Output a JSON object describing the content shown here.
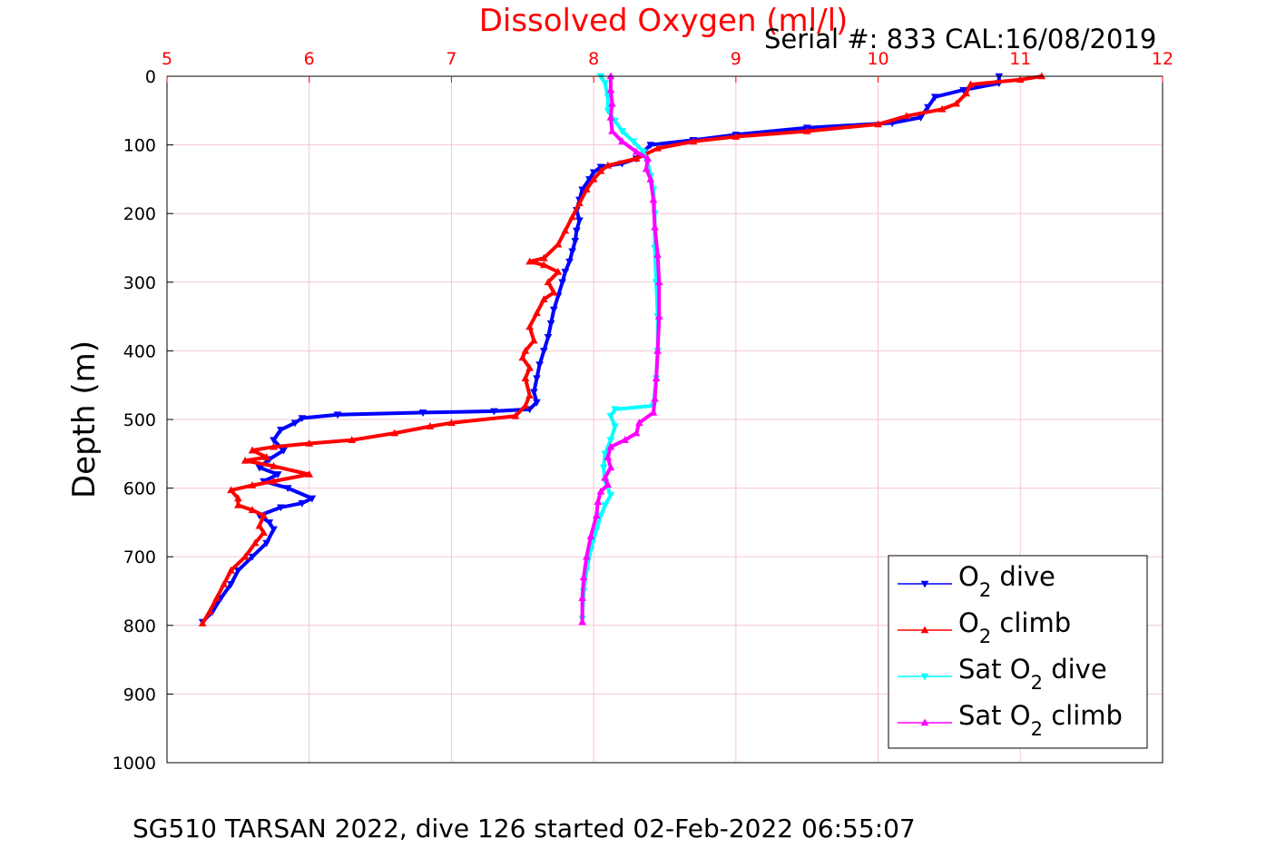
{
  "chart_data": {
    "type": "line",
    "title": "Dissolved Oxygen (ml/l)",
    "ylabel": "Depth (m)",
    "xlim": [
      5,
      12
    ],
    "ylim": [
      0,
      1000
    ],
    "y_reversed": true,
    "x_axis_position": "top",
    "x_ticks": [
      "5",
      "6",
      "7",
      "8",
      "9",
      "10",
      "11",
      "12"
    ],
    "y_ticks": [
      "0",
      "100",
      "200",
      "300",
      "400",
      "500",
      "600",
      "700",
      "800",
      "900",
      "1000"
    ],
    "grid": true,
    "legend_position": "bottom-right",
    "colors": {
      "title": "#ff0000",
      "x_ticks": "#ff0000",
      "grid": "#f4c7d4"
    },
    "series": [
      {
        "name": "O2 dive",
        "legend_main": "O",
        "legend_sub": "2",
        "legend_rest": " dive",
        "color": "#0000ff",
        "marker": "triangle-down",
        "points": [
          [
            10.85,
            0
          ],
          [
            10.85,
            10
          ],
          [
            10.6,
            20
          ],
          [
            10.4,
            30
          ],
          [
            10.35,
            45
          ],
          [
            10.3,
            60
          ],
          [
            10.1,
            68
          ],
          [
            9.5,
            75
          ],
          [
            9.0,
            85
          ],
          [
            8.7,
            93
          ],
          [
            8.4,
            100
          ],
          [
            8.35,
            110
          ],
          [
            8.3,
            120
          ],
          [
            8.2,
            127
          ],
          [
            8.05,
            132
          ],
          [
            8.0,
            140
          ],
          [
            7.97,
            150
          ],
          [
            7.92,
            165
          ],
          [
            7.9,
            180
          ],
          [
            7.88,
            195
          ],
          [
            7.9,
            210
          ],
          [
            7.88,
            225
          ],
          [
            7.87,
            240
          ],
          [
            7.85,
            255
          ],
          [
            7.83,
            270
          ],
          [
            7.8,
            285
          ],
          [
            7.78,
            300
          ],
          [
            7.75,
            320
          ],
          [
            7.72,
            340
          ],
          [
            7.7,
            360
          ],
          [
            7.68,
            380
          ],
          [
            7.65,
            400
          ],
          [
            7.62,
            420
          ],
          [
            7.6,
            440
          ],
          [
            7.58,
            460
          ],
          [
            7.6,
            475
          ],
          [
            7.55,
            485
          ],
          [
            7.3,
            488
          ],
          [
            6.8,
            490
          ],
          [
            6.2,
            493
          ],
          [
            5.95,
            498
          ],
          [
            5.9,
            505
          ],
          [
            5.8,
            515
          ],
          [
            5.75,
            530
          ],
          [
            5.82,
            545
          ],
          [
            5.72,
            558
          ],
          [
            5.65,
            570
          ],
          [
            5.78,
            580
          ],
          [
            5.68,
            590
          ],
          [
            5.85,
            600
          ],
          [
            6.02,
            615
          ],
          [
            5.95,
            622
          ],
          [
            5.8,
            628
          ],
          [
            5.65,
            640
          ],
          [
            5.72,
            650
          ],
          [
            5.75,
            660
          ],
          [
            5.7,
            680
          ],
          [
            5.6,
            700
          ],
          [
            5.5,
            720
          ],
          [
            5.45,
            740
          ],
          [
            5.38,
            760
          ],
          [
            5.32,
            780
          ],
          [
            5.25,
            795
          ]
        ]
      },
      {
        "name": "O2 climb",
        "legend_main": "O",
        "legend_sub": "2",
        "legend_rest": " climb",
        "color": "#ff0000",
        "marker": "triangle-up",
        "points": [
          [
            11.15,
            0
          ],
          [
            11.0,
            5
          ],
          [
            10.65,
            12
          ],
          [
            10.62,
            25
          ],
          [
            10.55,
            40
          ],
          [
            10.45,
            48
          ],
          [
            10.2,
            58
          ],
          [
            10.0,
            70
          ],
          [
            9.5,
            80
          ],
          [
            9.0,
            88
          ],
          [
            8.7,
            95
          ],
          [
            8.45,
            105
          ],
          [
            8.3,
            120
          ],
          [
            8.1,
            130
          ],
          [
            8.05,
            138
          ],
          [
            8.0,
            150
          ],
          [
            7.95,
            165
          ],
          [
            7.9,
            185
          ],
          [
            7.85,
            205
          ],
          [
            7.8,
            225
          ],
          [
            7.75,
            245
          ],
          [
            7.65,
            265
          ],
          [
            7.55,
            270
          ],
          [
            7.65,
            275
          ],
          [
            7.75,
            285
          ],
          [
            7.68,
            300
          ],
          [
            7.72,
            315
          ],
          [
            7.65,
            325
          ],
          [
            7.6,
            345
          ],
          [
            7.55,
            365
          ],
          [
            7.58,
            385
          ],
          [
            7.52,
            400
          ],
          [
            7.5,
            410
          ],
          [
            7.55,
            425
          ],
          [
            7.52,
            440
          ],
          [
            7.55,
            465
          ],
          [
            7.52,
            480
          ],
          [
            7.45,
            495
          ],
          [
            7.0,
            505
          ],
          [
            6.85,
            510
          ],
          [
            6.6,
            520
          ],
          [
            6.3,
            530
          ],
          [
            6.0,
            535
          ],
          [
            5.75,
            540
          ],
          [
            5.6,
            545
          ],
          [
            5.7,
            555
          ],
          [
            5.55,
            560
          ],
          [
            5.75,
            568
          ],
          [
            6.0,
            580
          ],
          [
            5.75,
            590
          ],
          [
            5.6,
            596
          ],
          [
            5.45,
            603
          ],
          [
            5.5,
            615
          ],
          [
            5.5,
            625
          ],
          [
            5.6,
            632
          ],
          [
            5.68,
            640
          ],
          [
            5.65,
            655
          ],
          [
            5.68,
            665
          ],
          [
            5.62,
            680
          ],
          [
            5.55,
            700
          ],
          [
            5.45,
            720
          ],
          [
            5.4,
            740
          ],
          [
            5.35,
            760
          ],
          [
            5.3,
            780
          ],
          [
            5.25,
            797
          ]
        ]
      },
      {
        "name": "Sat O2 dive",
        "legend_main": "Sat O",
        "legend_sub": "2",
        "legend_rest": " dive",
        "color": "#00ffff",
        "marker": "triangle-down",
        "points": [
          [
            8.05,
            0
          ],
          [
            8.08,
            10
          ],
          [
            8.1,
            30
          ],
          [
            8.1,
            50
          ],
          [
            8.15,
            65
          ],
          [
            8.2,
            80
          ],
          [
            8.28,
            95
          ],
          [
            8.35,
            110
          ],
          [
            8.38,
            125
          ],
          [
            8.4,
            145
          ],
          [
            8.42,
            165
          ],
          [
            8.43,
            200
          ],
          [
            8.43,
            250
          ],
          [
            8.44,
            300
          ],
          [
            8.45,
            350
          ],
          [
            8.45,
            400
          ],
          [
            8.44,
            440
          ],
          [
            8.42,
            480
          ],
          [
            8.15,
            485
          ],
          [
            8.12,
            495
          ],
          [
            8.15,
            510
          ],
          [
            8.12,
            530
          ],
          [
            8.08,
            550
          ],
          [
            8.07,
            570
          ],
          [
            8.08,
            590
          ],
          [
            8.12,
            610
          ],
          [
            8.08,
            625
          ],
          [
            8.05,
            640
          ],
          [
            8.02,
            660
          ],
          [
            7.98,
            690
          ],
          [
            7.95,
            720
          ],
          [
            7.93,
            750
          ],
          [
            7.92,
            790
          ]
        ]
      },
      {
        "name": "Sat O2 climb",
        "legend_main": "Sat O",
        "legend_sub": "2",
        "legend_rest": " climb",
        "color": "#ff00ff",
        "marker": "triangle-up",
        "points": [
          [
            8.12,
            0
          ],
          [
            8.12,
            20
          ],
          [
            8.13,
            40
          ],
          [
            8.12,
            60
          ],
          [
            8.13,
            80
          ],
          [
            8.2,
            95
          ],
          [
            8.3,
            110
          ],
          [
            8.38,
            120
          ],
          [
            8.37,
            135
          ],
          [
            8.4,
            150
          ],
          [
            8.42,
            180
          ],
          [
            8.43,
            220
          ],
          [
            8.45,
            260
          ],
          [
            8.46,
            300
          ],
          [
            8.46,
            350
          ],
          [
            8.45,
            400
          ],
          [
            8.44,
            440
          ],
          [
            8.43,
            470
          ],
          [
            8.42,
            490
          ],
          [
            8.32,
            505
          ],
          [
            8.3,
            520
          ],
          [
            8.22,
            530
          ],
          [
            8.12,
            540
          ],
          [
            8.1,
            555
          ],
          [
            8.12,
            570
          ],
          [
            8.08,
            585
          ],
          [
            8.1,
            595
          ],
          [
            8.05,
            605
          ],
          [
            8.03,
            620
          ],
          [
            8.02,
            640
          ],
          [
            7.98,
            670
          ],
          [
            7.95,
            700
          ],
          [
            7.93,
            730
          ],
          [
            7.92,
            760
          ],
          [
            7.92,
            795
          ]
        ]
      }
    ]
  },
  "annotations": {
    "serial": "Serial #: 833  CAL:16/08/2019",
    "caption": "SG510 TARSAN 2022, dive 126 started 02-Feb-2022 06:55:07"
  }
}
